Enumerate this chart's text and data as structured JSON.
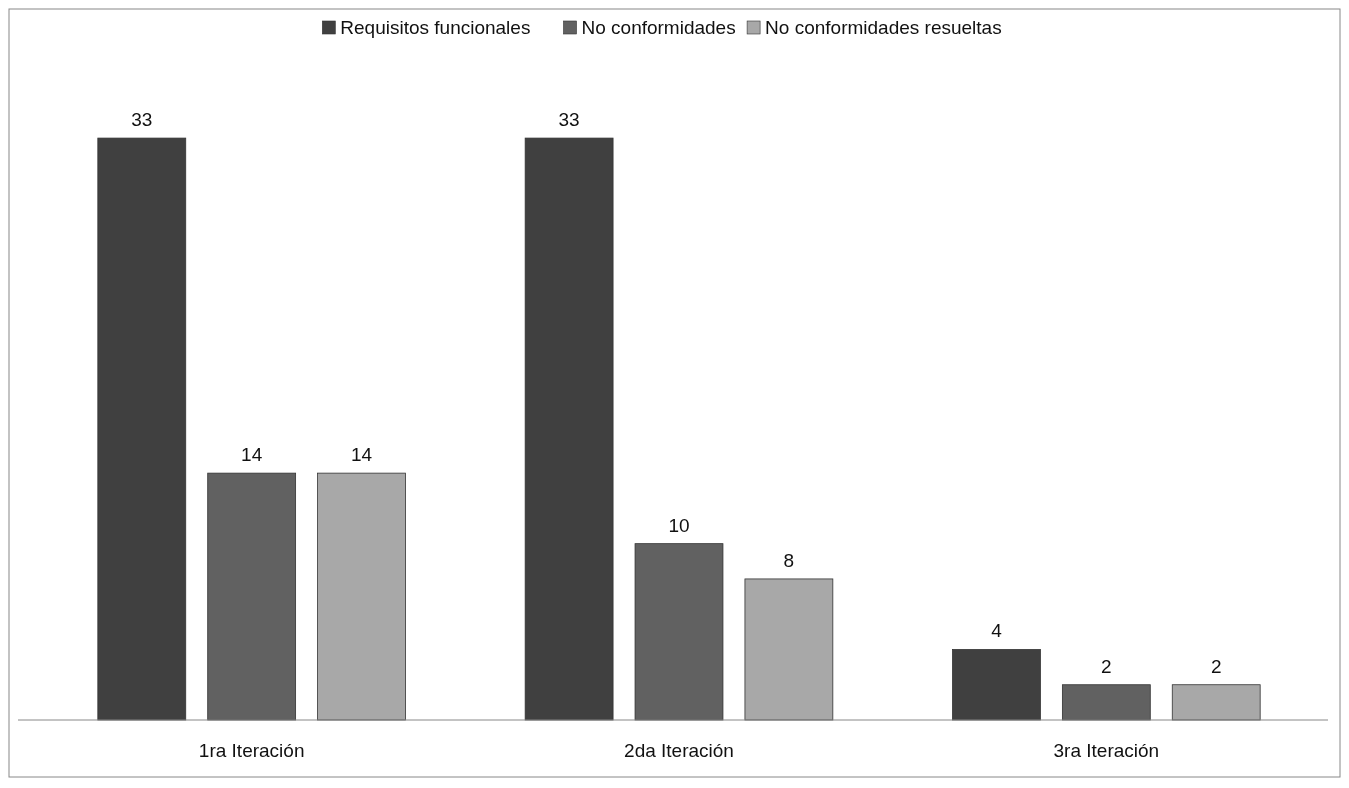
{
  "chart_data": {
    "type": "bar",
    "categories": [
      "1ra Iteración",
      "2da Iteración",
      "3ra Iteración"
    ],
    "series": [
      {
        "name": "Requisitos funcionales",
        "color": "#404040",
        "values": [
          33,
          33,
          4
        ]
      },
      {
        "name": "No conformidades",
        "color": "#616161",
        "values": [
          14,
          10,
          2
        ]
      },
      {
        "name": "No conformidades resueltas",
        "color": "#a8a8a8",
        "values": [
          14,
          8,
          2
        ]
      }
    ],
    "data_labels": true,
    "legend": "top"
  }
}
